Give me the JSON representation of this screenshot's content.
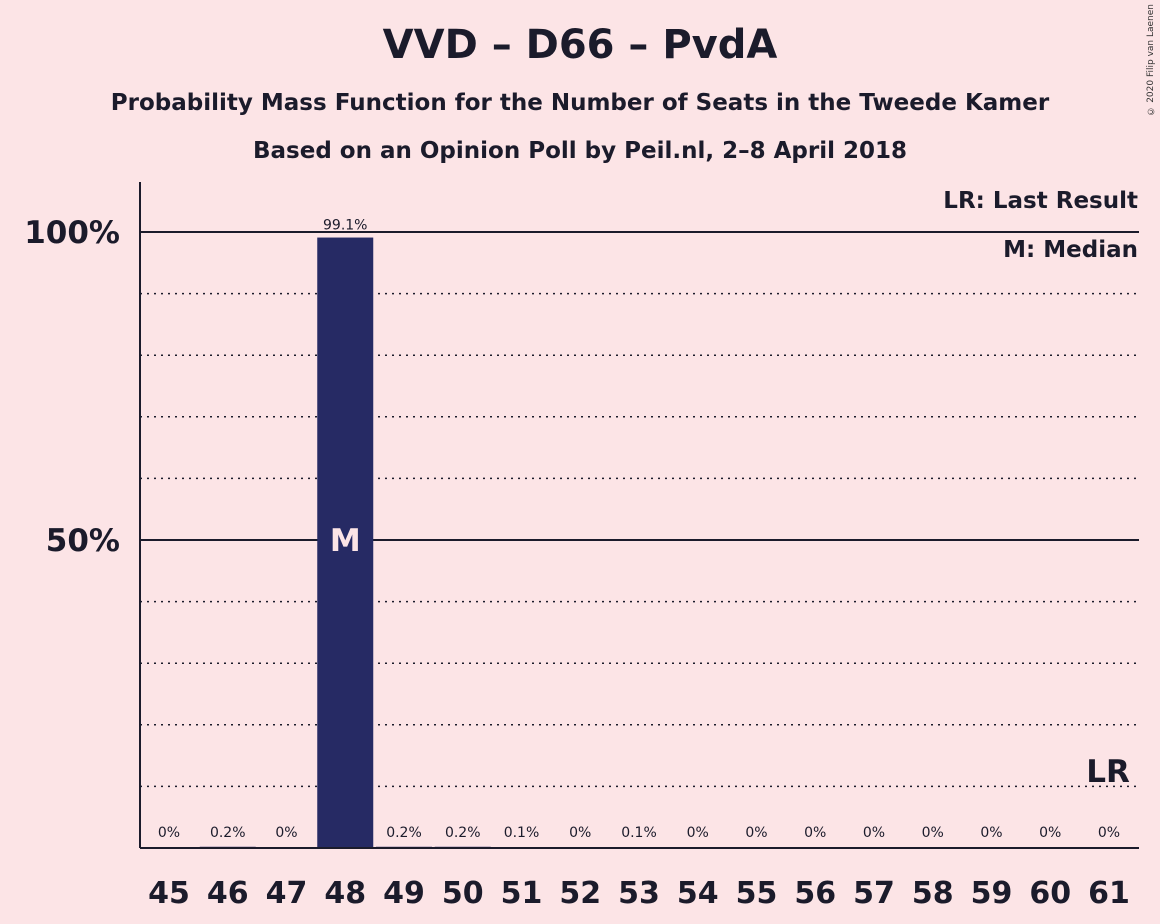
{
  "copyright": "© 2020 Filip van Laenen",
  "colors": {
    "background": "#fce4e6",
    "bar": "#262a64",
    "text": "#1b1b2b"
  },
  "chart_data": {
    "type": "bar",
    "title": "VVD – D66 – PvdA",
    "subtitle1": "Probability Mass Function for the Number of Seats in the Tweede Kamer",
    "subtitle2": "Based on an Opinion Poll by Peil.nl, 2–8 April 2018",
    "categories": [
      "45",
      "46",
      "47",
      "48",
      "49",
      "50",
      "51",
      "52",
      "53",
      "54",
      "55",
      "56",
      "57",
      "58",
      "59",
      "60",
      "61"
    ],
    "values": [
      0,
      0.2,
      0,
      99.1,
      0.2,
      0.2,
      0.1,
      0,
      0.1,
      0,
      0,
      0,
      0,
      0,
      0,
      0,
      0
    ],
    "value_labels": [
      "0%",
      "0.2%",
      "0%",
      "99.1%",
      "0.2%",
      "0.2%",
      "0.1%",
      "0%",
      "0.1%",
      "0%",
      "0%",
      "0%",
      "0%",
      "0%",
      "0%",
      "0%",
      "0%"
    ],
    "ylim": [
      0,
      100
    ],
    "yticks": [
      {
        "value": 50,
        "label": "50%"
      },
      {
        "value": 100,
        "label": "100%"
      }
    ],
    "minor_gridlines": [
      10,
      20,
      30,
      40,
      60,
      70,
      80,
      90
    ],
    "median_category": "48",
    "median_mark": "M",
    "last_result_category": "61",
    "last_result_mark": "LR",
    "legend": {
      "placement": "top-right",
      "entries": [
        "LR: Last Result",
        "M: Median"
      ]
    }
  }
}
